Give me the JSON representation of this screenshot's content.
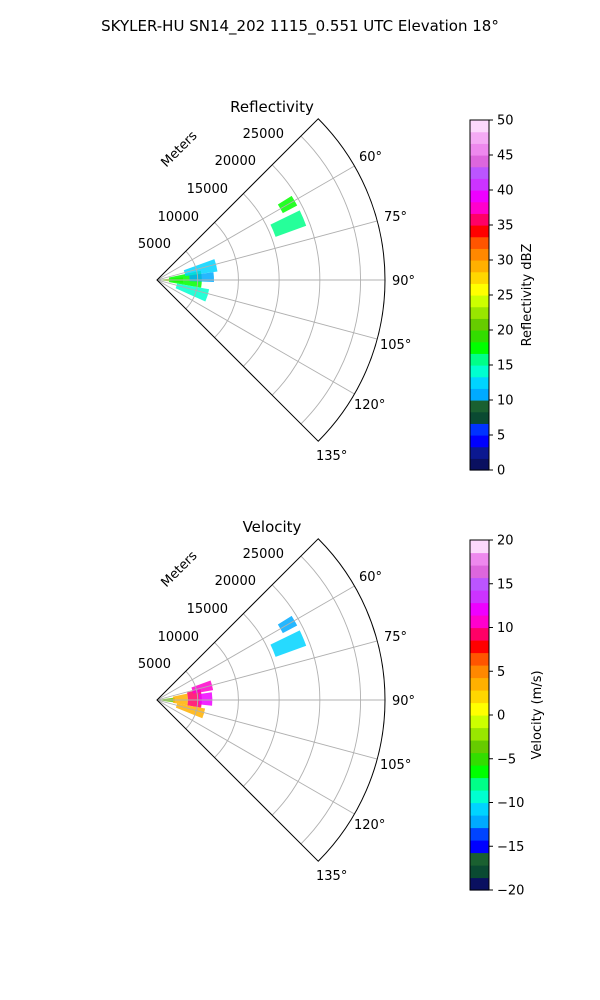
{
  "figure": {
    "title": "SKYLER-HU  SN14_202  1115_0.551 UTC Elevation 18°"
  },
  "chart_data": [
    {
      "type": "heatmap",
      "title": "Reflectivity",
      "radial_axis_label": "Meters",
      "radial_ticks": [
        "5000",
        "10000",
        "15000",
        "20000",
        "25000"
      ],
      "angle_ticks": [
        "60°",
        "75°",
        "90°",
        "105°",
        "120°",
        "135°"
      ],
      "azimuth_range_deg": [
        45,
        135
      ],
      "range_max_m": 28000,
      "grid": true,
      "colorbar": {
        "label": "Reflectivity dBZ",
        "min": 0,
        "max": 50,
        "ticks": [
          "0",
          "5",
          "10",
          "15",
          "20",
          "25",
          "30",
          "35",
          "40",
          "45",
          "50"
        ],
        "colors": [
          "#0a1060",
          "#0b1890",
          "#0000ff",
          "#0033ff",
          "#0a4a32",
          "#1a6030",
          "#00aaff",
          "#00d4ff",
          "#00ffd0",
          "#00ff88",
          "#00ff00",
          "#33dd00",
          "#66cc00",
          "#99e600",
          "#ccff00",
          "#ffff00",
          "#ffd700",
          "#ffb000",
          "#ff8800",
          "#ff5500",
          "#ff0000",
          "#ff0066",
          "#ff00cc",
          "#ee00ff",
          "#cc33ff",
          "#bb55ff",
          "#dd66dd",
          "#ee88ee",
          "#f5aaf5",
          "#fcd8fc"
        ]
      },
      "echo_regions": [
        {
          "az": [
            84,
            96
          ],
          "r": [
            0,
            3200
          ],
          "value": 22
        },
        {
          "az": [
            78,
            100
          ],
          "r": [
            1500,
            5500
          ],
          "value": 18
        },
        {
          "az": [
            70,
            82
          ],
          "r": [
            3500,
            7500
          ],
          "value": 12
        },
        {
          "az": [
            82,
            92
          ],
          "r": [
            4000,
            7000
          ],
          "value": 10
        },
        {
          "az": [
            100,
            114
          ],
          "r": [
            2500,
            6500
          ],
          "value": 14
        },
        {
          "az": [
            64,
            70
          ],
          "r": [
            15500,
            19500
          ],
          "value": 15
        },
        {
          "az": [
            58,
            62
          ],
          "r": [
            17500,
            19500
          ],
          "value": 17
        }
      ]
    },
    {
      "type": "heatmap",
      "title": "Velocity",
      "radial_axis_label": "Meters",
      "radial_ticks": [
        "5000",
        "10000",
        "15000",
        "20000",
        "25000"
      ],
      "angle_ticks": [
        "60°",
        "75°",
        "90°",
        "105°",
        "120°",
        "135°"
      ],
      "azimuth_range_deg": [
        45,
        135
      ],
      "range_max_m": 28000,
      "grid": true,
      "colorbar": {
        "label": "Velocity (m/s)",
        "min": -20,
        "max": 20,
        "ticks": [
          "−20",
          "−15",
          "−10",
          "−5",
          "0",
          "5",
          "10",
          "15",
          "20"
        ],
        "colors": [
          "#0a1060",
          "#0a4a32",
          "#1a6030",
          "#0000ff",
          "#0044ff",
          "#00aaff",
          "#00d4ff",
          "#00ffd0",
          "#00ff88",
          "#00ff00",
          "#33dd00",
          "#66cc00",
          "#99e600",
          "#ccff00",
          "#ffff00",
          "#ffd700",
          "#ffb000",
          "#ff8800",
          "#ff5500",
          "#ff0000",
          "#ff0066",
          "#ff00cc",
          "#ee00ff",
          "#cc33ff",
          "#bb55ff",
          "#dd66dd",
          "#ee88ee",
          "#fcd8fc"
        ]
      },
      "echo_regions": [
        {
          "az": [
            82,
            98
          ],
          "r": [
            0,
            2200
          ],
          "value": -4
        },
        {
          "az": [
            78,
            100
          ],
          "r": [
            2000,
            3800
          ],
          "value": 3
        },
        {
          "az": [
            76,
            100
          ],
          "r": [
            3800,
            5500
          ],
          "value": 9
        },
        {
          "az": [
            70,
            80
          ],
          "r": [
            4500,
            7000
          ],
          "value": 10
        },
        {
          "az": [
            82,
            96
          ],
          "r": [
            5200,
            6800
          ],
          "value": 12
        },
        {
          "az": [
            100,
            112
          ],
          "r": [
            2500,
            6000
          ],
          "value": 4
        },
        {
          "az": [
            64,
            70
          ],
          "r": [
            15500,
            19500
          ],
          "value": -11
        },
        {
          "az": [
            58,
            62
          ],
          "r": [
            17500,
            19500
          ],
          "value": -12
        }
      ]
    }
  ]
}
